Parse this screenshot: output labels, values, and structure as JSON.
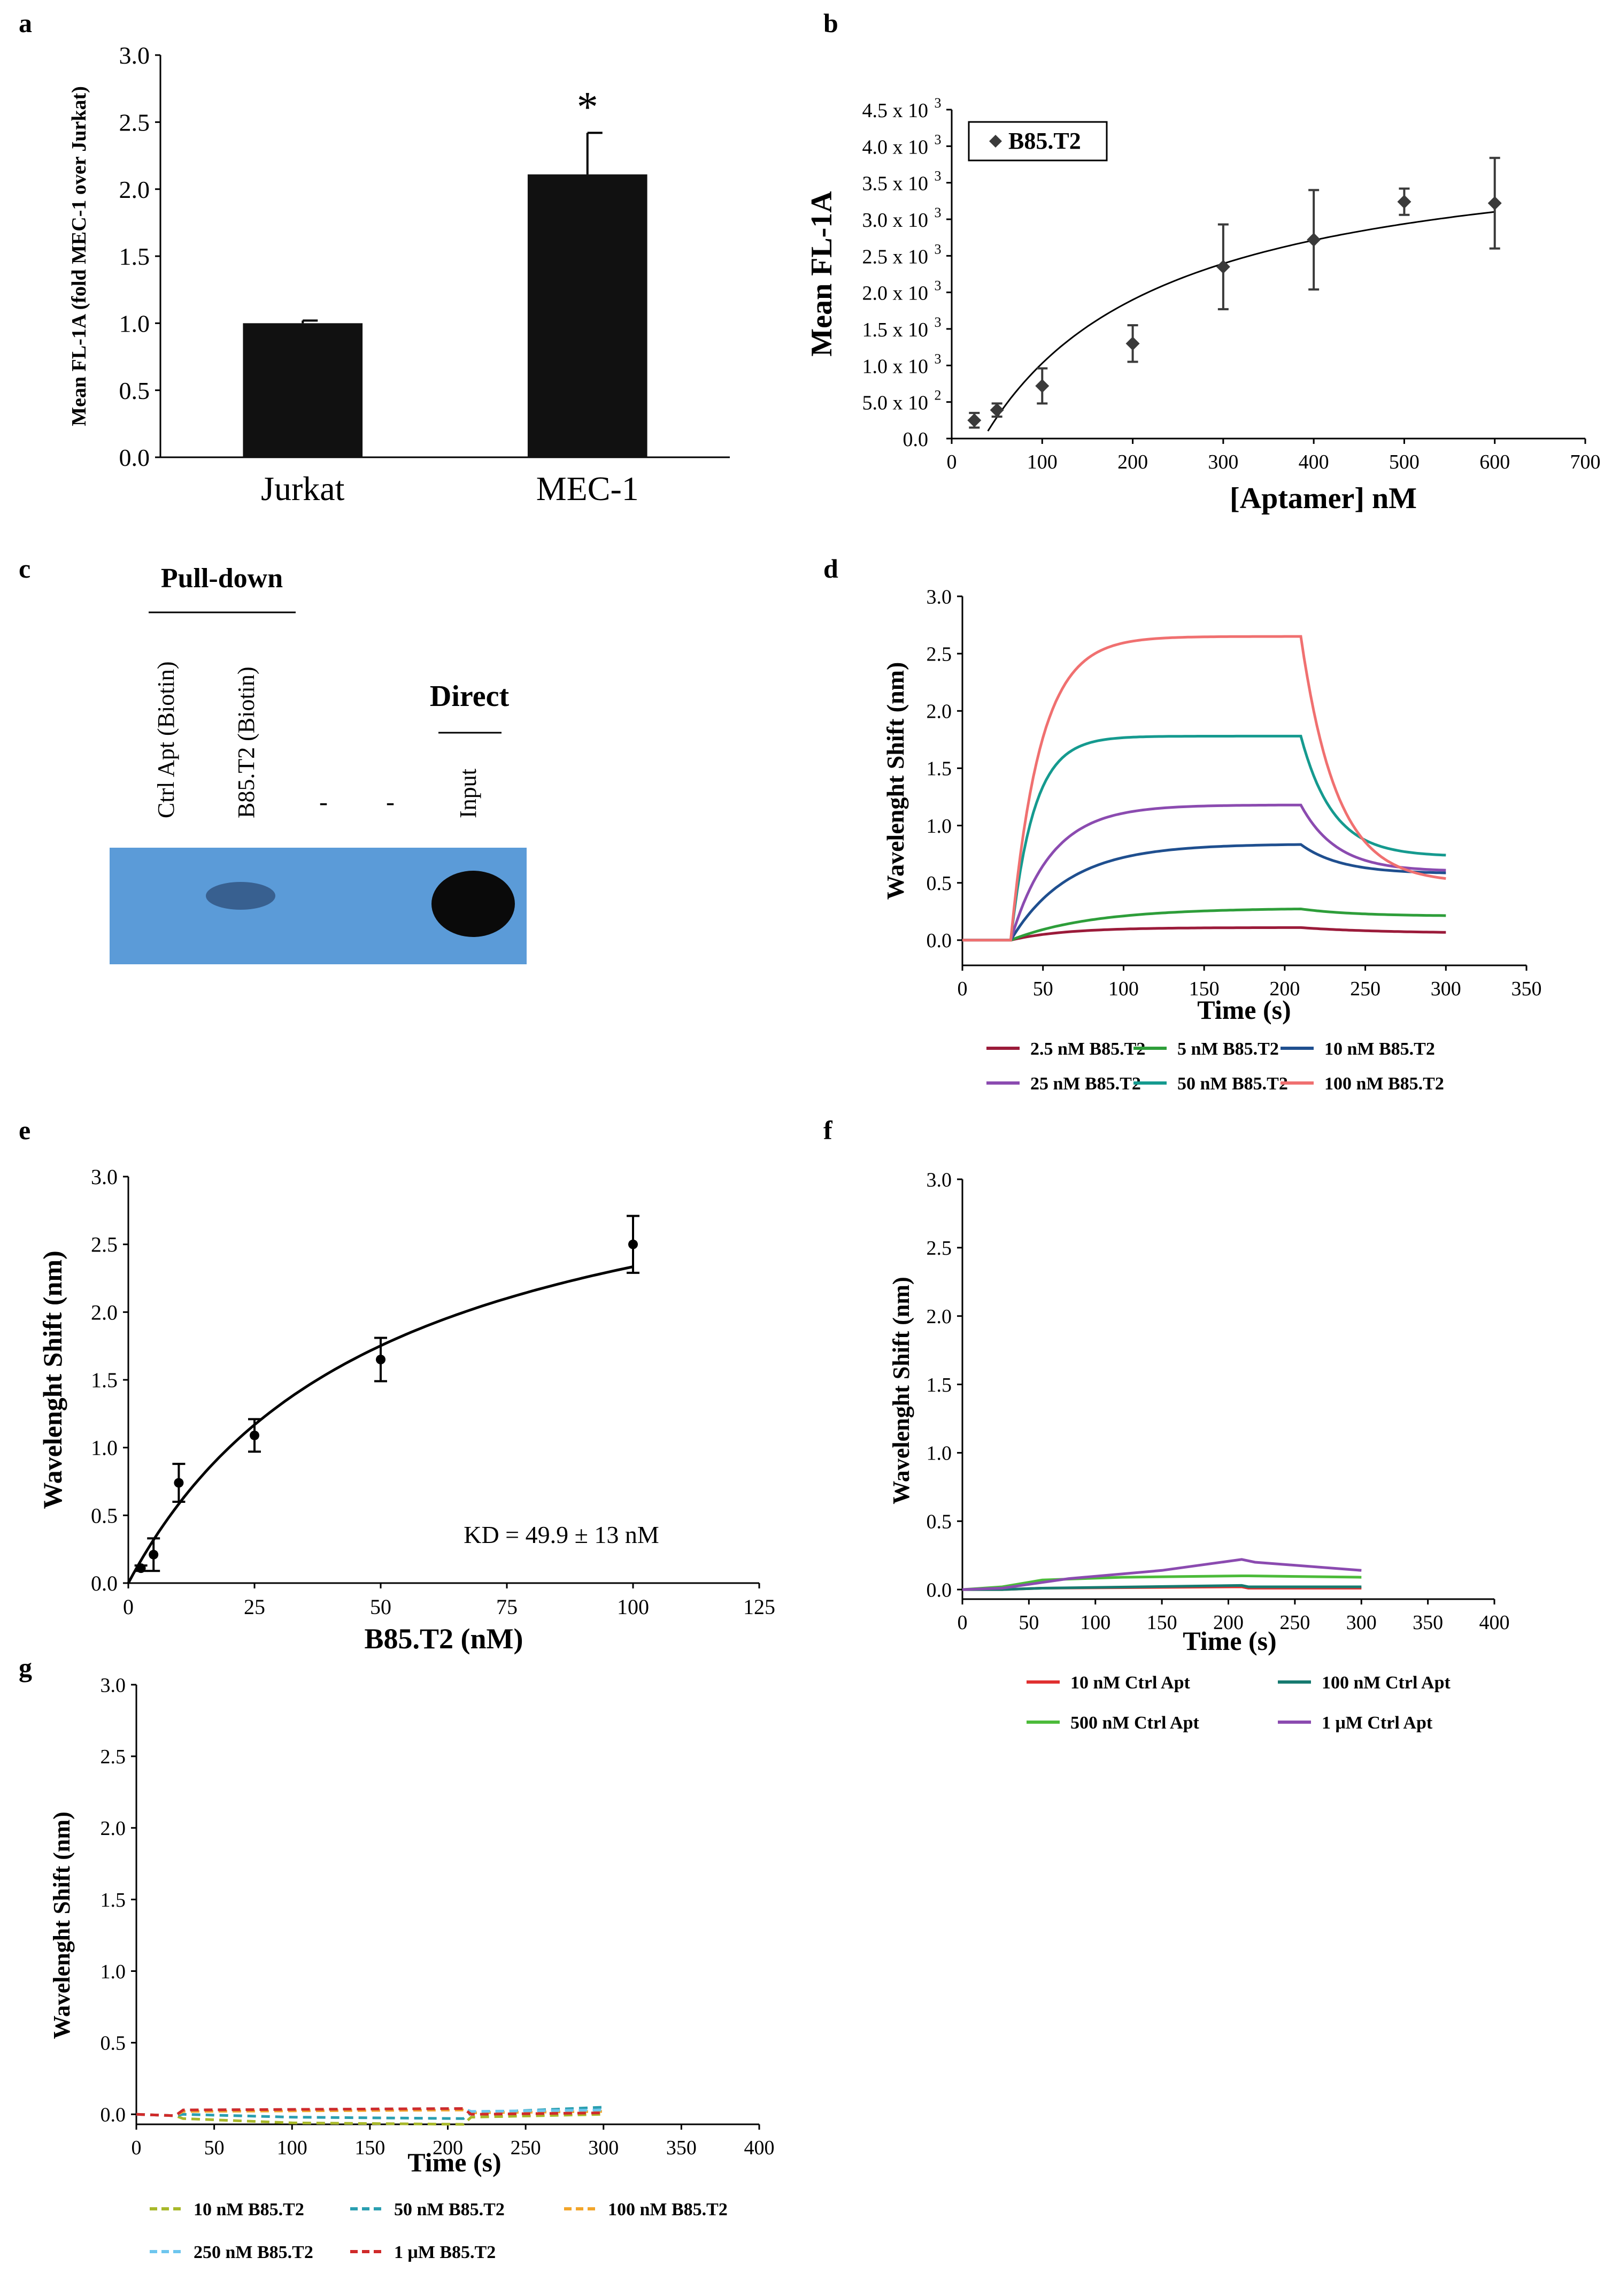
{
  "panels": {
    "a": "a",
    "b": "b",
    "c": "c",
    "d": "d",
    "e": "e",
    "f": "f",
    "g": "g"
  },
  "colors": {
    "axis": "#000000",
    "bar": "#111111",
    "series_b": "#3a3a3a",
    "blot_bg": "#5b9bd8",
    "blot_band": "#0a0a0a",
    "d_2_5": "#9b1b3a",
    "d_5": "#2e9e3a",
    "d_10": "#1f4f8f",
    "d_25": "#8b4bb0",
    "d_50": "#159a8f",
    "d_100": "#f07070",
    "f_10": "#e03030",
    "f_100": "#167a70",
    "f_500": "#4cbb3a",
    "f_1u": "#8b4bb0",
    "g_10": "#a8b82a",
    "g_50": "#2a9fb0",
    "g_100": "#f2a52a",
    "g_250": "#6ec6ee",
    "g_1u": "#d02a2a"
  },
  "chart_data": [
    {
      "id": "a",
      "type": "bar",
      "categories": [
        "Jurkat",
        "MEC-1"
      ],
      "values": [
        1.0,
        2.11
      ],
      "errors": [
        0.02,
        0.31
      ],
      "annotation": "*",
      "ylabel": "Mean FL-1A (fold MEC-1 over Jurkat)",
      "ylim": [
        0,
        3.0
      ],
      "yticks": [
        "0.0",
        "0.5",
        "1.0",
        "1.5",
        "2.0",
        "2.5",
        "3.0"
      ]
    },
    {
      "id": "b",
      "type": "scatter",
      "series_name": "B85.T2",
      "x": [
        25,
        50,
        100,
        200,
        300,
        400,
        500,
        600
      ],
      "y": [
        250,
        390,
        720,
        1300,
        2350,
        2720,
        3240,
        3220
      ],
      "err": [
        100,
        90,
        240,
        250,
        580,
        680,
        180,
        620
      ],
      "fit": "curve",
      "xlabel": "[Aptamer] nM",
      "ylabel": "Mean FL-1A",
      "xlim": [
        0,
        700
      ],
      "ylim": [
        0,
        4500
      ],
      "xticks": [
        "0",
        "100",
        "200",
        "300",
        "400",
        "500",
        "600",
        "700"
      ],
      "ytick_base": [
        "0.0",
        "5.0 x 10",
        "1.0 x 10",
        "1.5 x 10",
        "2.0 x 10",
        "2.5 x 10",
        "3.0 x 10",
        "3.5 x 10",
        "4.0 x 10",
        "4.5 x 10"
      ],
      "ytick_exp": [
        "",
        "2",
        "3",
        "3",
        "3",
        "3",
        "3",
        "3",
        "3",
        "3"
      ]
    },
    {
      "id": "d",
      "type": "line",
      "xlabel": "Time (s)",
      "ylabel": "Wavelenght Shift (nm)",
      "xlim": [
        0,
        350
      ],
      "ylim": [
        0,
        3.0
      ],
      "xticks": [
        "0",
        "50",
        "100",
        "150",
        "200",
        "250",
        "300",
        "350"
      ],
      "yticks": [
        "0.0",
        "0.5",
        "1.0",
        "1.5",
        "2.0",
        "2.5",
        "3.0"
      ],
      "assoc_start": 30,
      "dissoc_start": 210,
      "end": 300,
      "series": [
        {
          "name": "2.5 nM B85.T2",
          "color_key": "d_2_5",
          "plateau": 0.11,
          "k_on": 0.03,
          "end_val": 0.06,
          "k_off": 0.02
        },
        {
          "name": "5 nM B85.T2",
          "color_key": "d_5",
          "plateau": 0.28,
          "k_on": 0.02,
          "end_val": 0.21,
          "k_off": 0.03
        },
        {
          "name": "10 nM B85.T2",
          "color_key": "d_10",
          "plateau": 0.84,
          "k_on": 0.028,
          "end_val": 0.58,
          "k_off": 0.04
        },
        {
          "name": "25 nM B85.T2",
          "color_key": "d_25",
          "plateau": 1.18,
          "k_on": 0.04,
          "end_val": 0.6,
          "k_off": 0.045
        },
        {
          "name": "50 nM B85.T2",
          "color_key": "d_50",
          "plateau": 1.78,
          "k_on": 0.07,
          "end_val": 0.73,
          "k_off": 0.05
        },
        {
          "name": "100 nM B85.T2",
          "color_key": "d_100",
          "plateau": 2.65,
          "k_on": 0.055,
          "end_val": 0.5,
          "k_off": 0.045
        }
      ]
    },
    {
      "id": "e",
      "type": "scatter",
      "x": [
        2.5,
        5,
        10,
        25,
        50,
        100
      ],
      "y": [
        0.11,
        0.21,
        0.74,
        1.09,
        1.65,
        2.5
      ],
      "err": [
        0.02,
        0.12,
        0.14,
        0.12,
        0.16,
        0.21
      ],
      "fit": "curve",
      "fit_bmax": 3.5,
      "fit_kd": 49.9,
      "annotation": "KD = 49.9 ± 13 nM",
      "xlabel": "B85.T2 (nM)",
      "ylabel": "Wavelenght Shift (nm)",
      "xlim": [
        0,
        125
      ],
      "ylim": [
        0,
        3.0
      ],
      "xticks": [
        "0",
        "25",
        "50",
        "75",
        "100",
        "125"
      ],
      "yticks": [
        "0.0",
        "0.5",
        "1.0",
        "1.5",
        "2.0",
        "2.5",
        "3.0"
      ]
    },
    {
      "id": "f",
      "type": "line",
      "xlabel": "Time (s)",
      "ylabel": "Wavelenght Shift (nm)",
      "xlim": [
        0,
        400
      ],
      "ylim": [
        0,
        3.0
      ],
      "xticks": [
        "0",
        "50",
        "100",
        "150",
        "200",
        "250",
        "300",
        "350",
        "400"
      ],
      "yticks": [
        "0.0",
        "0.5",
        "1.0",
        "1.5",
        "2.0",
        "2.5",
        "3.0"
      ],
      "series": [
        {
          "name": "10 nM Ctrl Apt",
          "color_key": "f_10",
          "points": [
            [
              0,
              0.0
            ],
            [
              30,
              0.0
            ],
            [
              60,
              0.01
            ],
            [
              210,
              0.02
            ],
            [
              215,
              0.01
            ],
            [
              300,
              0.01
            ]
          ]
        },
        {
          "name": "100 nM Ctrl Apt",
          "color_key": "f_100",
          "points": [
            [
              0,
              0.0
            ],
            [
              30,
              0.0
            ],
            [
              60,
              0.01
            ],
            [
              210,
              0.03
            ],
            [
              215,
              0.02
            ],
            [
              300,
              0.02
            ]
          ]
        },
        {
          "name": "500 nM Ctrl Apt",
          "color_key": "f_500",
          "points": [
            [
              0,
              0.0
            ],
            [
              30,
              0.02
            ],
            [
              60,
              0.07
            ],
            [
              120,
              0.09
            ],
            [
              210,
              0.1
            ],
            [
              215,
              0.1
            ],
            [
              300,
              0.09
            ]
          ]
        },
        {
          "name": "1 μM Ctrl Apt",
          "color_key": "f_1u",
          "points": [
            [
              0,
              0.0
            ],
            [
              30,
              0.01
            ],
            [
              80,
              0.08
            ],
            [
              150,
              0.14
            ],
            [
              210,
              0.22
            ],
            [
              220,
              0.2
            ],
            [
              300,
              0.14
            ]
          ]
        }
      ]
    },
    {
      "id": "g",
      "type": "line",
      "dashed": true,
      "xlabel": "Time (s)",
      "ylabel": "Wavelenght Shift (nm)",
      "xlim": [
        0,
        400
      ],
      "ylim": [
        0,
        3.0
      ],
      "xticks": [
        "0",
        "50",
        "100",
        "150",
        "200",
        "250",
        "300",
        "350",
        "400"
      ],
      "yticks": [
        "0.0",
        "0.5",
        "1.0",
        "1.5",
        "2.0",
        "2.5",
        "3.0"
      ],
      "series": [
        {
          "name": "10 nM B85.T2",
          "color_key": "g_10",
          "points": [
            [
              0,
              0.0
            ],
            [
              25,
              -0.01
            ],
            [
              30,
              -0.03
            ],
            [
              100,
              -0.06
            ],
            [
              210,
              -0.07
            ],
            [
              215,
              -0.02
            ],
            [
              300,
              0.0
            ]
          ]
        },
        {
          "name": "50 nM B85.T2",
          "color_key": "g_50",
          "points": [
            [
              0,
              0.0
            ],
            [
              25,
              -0.01
            ],
            [
              30,
              0.0
            ],
            [
              100,
              -0.02
            ],
            [
              210,
              -0.03
            ],
            [
              215,
              0.01
            ],
            [
              300,
              0.05
            ]
          ]
        },
        {
          "name": "100 nM B85.T2",
          "color_key": "g_100",
          "points": [
            [
              0,
              0.0
            ],
            [
              25,
              -0.01
            ],
            [
              30,
              0.02
            ],
            [
              210,
              0.03
            ],
            [
              215,
              0.01
            ],
            [
              300,
              0.02
            ]
          ]
        },
        {
          "name": "250 nM B85.T2",
          "color_key": "g_250",
          "points": [
            [
              0,
              0.0
            ],
            [
              25,
              -0.01
            ],
            [
              30,
              0.03
            ],
            [
              210,
              0.04
            ],
            [
              215,
              0.02
            ],
            [
              300,
              0.03
            ]
          ]
        },
        {
          "name": "1 μM B85.T2",
          "color_key": "g_1u",
          "points": [
            [
              0,
              0.0
            ],
            [
              25,
              -0.01
            ],
            [
              30,
              0.03
            ],
            [
              210,
              0.04
            ],
            [
              215,
              0.0
            ],
            [
              300,
              0.01
            ]
          ]
        }
      ]
    }
  ],
  "blot": {
    "pulldown_title": "Pull-down",
    "direct_title": "Direct",
    "lanes": [
      "Ctrl Apt (Biotin)",
      "B85.T2 (Biotin)",
      "-",
      "-",
      "Input"
    ]
  }
}
